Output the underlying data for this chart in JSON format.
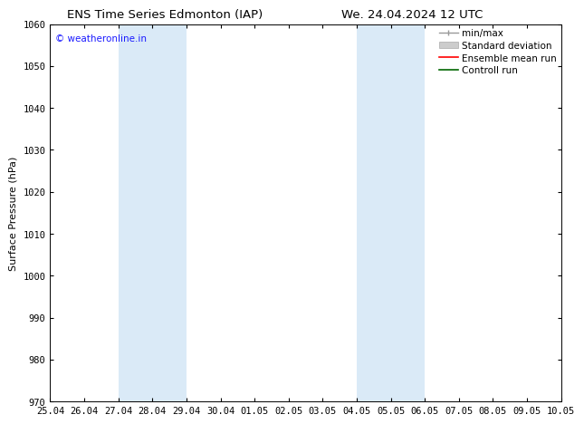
{
  "title_left": "ENS Time Series Edmonton (IAP)",
  "title_right": "We. 24.04.2024 12 UTC",
  "ylabel": "Surface Pressure (hPa)",
  "ylim": [
    970,
    1060
  ],
  "yticks": [
    970,
    980,
    990,
    1000,
    1010,
    1020,
    1030,
    1040,
    1050,
    1060
  ],
  "xtick_labels": [
    "25.04",
    "26.04",
    "27.04",
    "28.04",
    "29.04",
    "30.04",
    "01.05",
    "02.05",
    "03.05",
    "04.05",
    "05.05",
    "06.05",
    "07.05",
    "08.05",
    "09.05",
    "10.05"
  ],
  "shaded_regions": [
    {
      "xstart": 2,
      "xend": 4,
      "color": "#daeaf7"
    },
    {
      "xstart": 9,
      "xend": 11,
      "color": "#daeaf7"
    }
  ],
  "watermark": "© weatheronline.in",
  "watermark_color": "#1a1aff",
  "background_color": "#ffffff",
  "title_fontsize": 9.5,
  "axis_label_fontsize": 8,
  "tick_fontsize": 7.5,
  "legend_fontsize": 7.5,
  "watermark_fontsize": 7.5
}
